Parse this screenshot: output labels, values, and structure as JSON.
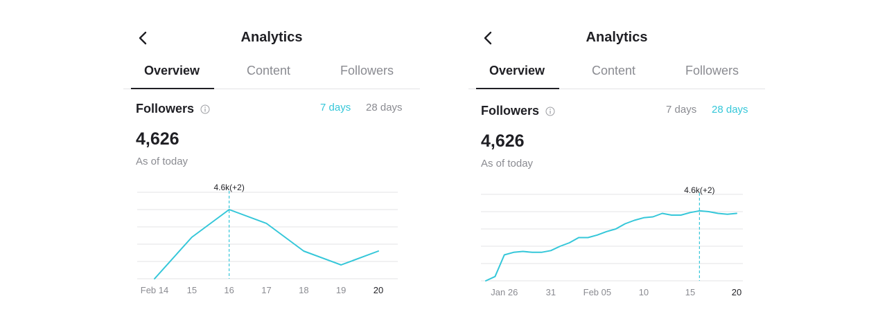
{
  "colors": {
    "accent": "#35c7d9",
    "text": "#1f1f24",
    "muted": "#8a8b91",
    "grid": "#e3e3e6"
  },
  "panels": [
    {
      "header": {
        "title": "Analytics",
        "back_icon": "chevron-left-icon"
      },
      "tabs": [
        {
          "label": "Overview",
          "active": true
        },
        {
          "label": "Content",
          "active": false
        },
        {
          "label": "Followers",
          "active": false
        }
      ],
      "section": {
        "title": "Followers",
        "info_icon": "info-icon"
      },
      "ranges": [
        {
          "label": "7 days",
          "active": true
        },
        {
          "label": "28 days",
          "active": false
        }
      ],
      "stat": {
        "value": "4,626",
        "caption": "As of today"
      },
      "chart_data": {
        "type": "line",
        "x": [
          "Feb 14",
          "15",
          "16",
          "17",
          "18",
          "19",
          "20"
        ],
        "x_tick_labels": [
          "Feb 14",
          "15",
          "16",
          "17",
          "18",
          "19",
          "20"
        ],
        "values": [
          0,
          24,
          40,
          32,
          16,
          8,
          16
        ],
        "ylim": [
          0,
          50
        ],
        "gridlines": 6,
        "highlight": {
          "index": 2,
          "label": "4.6k(+2)"
        }
      }
    },
    {
      "header": {
        "title": "Analytics",
        "back_icon": "chevron-left-icon"
      },
      "tabs": [
        {
          "label": "Overview",
          "active": true
        },
        {
          "label": "Content",
          "active": false
        },
        {
          "label": "Followers",
          "active": false
        }
      ],
      "section": {
        "title": "Followers",
        "info_icon": "info-icon"
      },
      "ranges": [
        {
          "label": "7 days",
          "active": false
        },
        {
          "label": "28 days",
          "active": true
        }
      ],
      "stat": {
        "value": "4,626",
        "caption": "As of today"
      },
      "chart_data": {
        "type": "line",
        "x": [
          24,
          25,
          26,
          27,
          28,
          29,
          30,
          31,
          32,
          33,
          34,
          35,
          36,
          37,
          38,
          39,
          40,
          41,
          42,
          43,
          44,
          45,
          46,
          47,
          48,
          49,
          50,
          51
        ],
        "x_tick_labels": [
          {
            "x": 26,
            "label": "Jan 26"
          },
          {
            "x": 31,
            "label": "31"
          },
          {
            "x": 36,
            "label": "Feb 05"
          },
          {
            "x": 41,
            "label": "10"
          },
          {
            "x": 46,
            "label": "15"
          },
          {
            "x": 51,
            "label": "20"
          }
        ],
        "values": [
          0,
          2.5,
          15,
          16.5,
          17,
          16.5,
          16.5,
          17.5,
          20,
          22,
          25,
          25,
          26.5,
          28.5,
          30,
          33,
          35,
          36.5,
          37,
          39,
          38,
          38,
          39.5,
          40.5,
          40,
          39,
          38.5,
          39
        ],
        "ylim": [
          0,
          50
        ],
        "gridlines": 6,
        "highlight": {
          "index": 23,
          "label": "4.6k(+2)"
        }
      }
    }
  ]
}
